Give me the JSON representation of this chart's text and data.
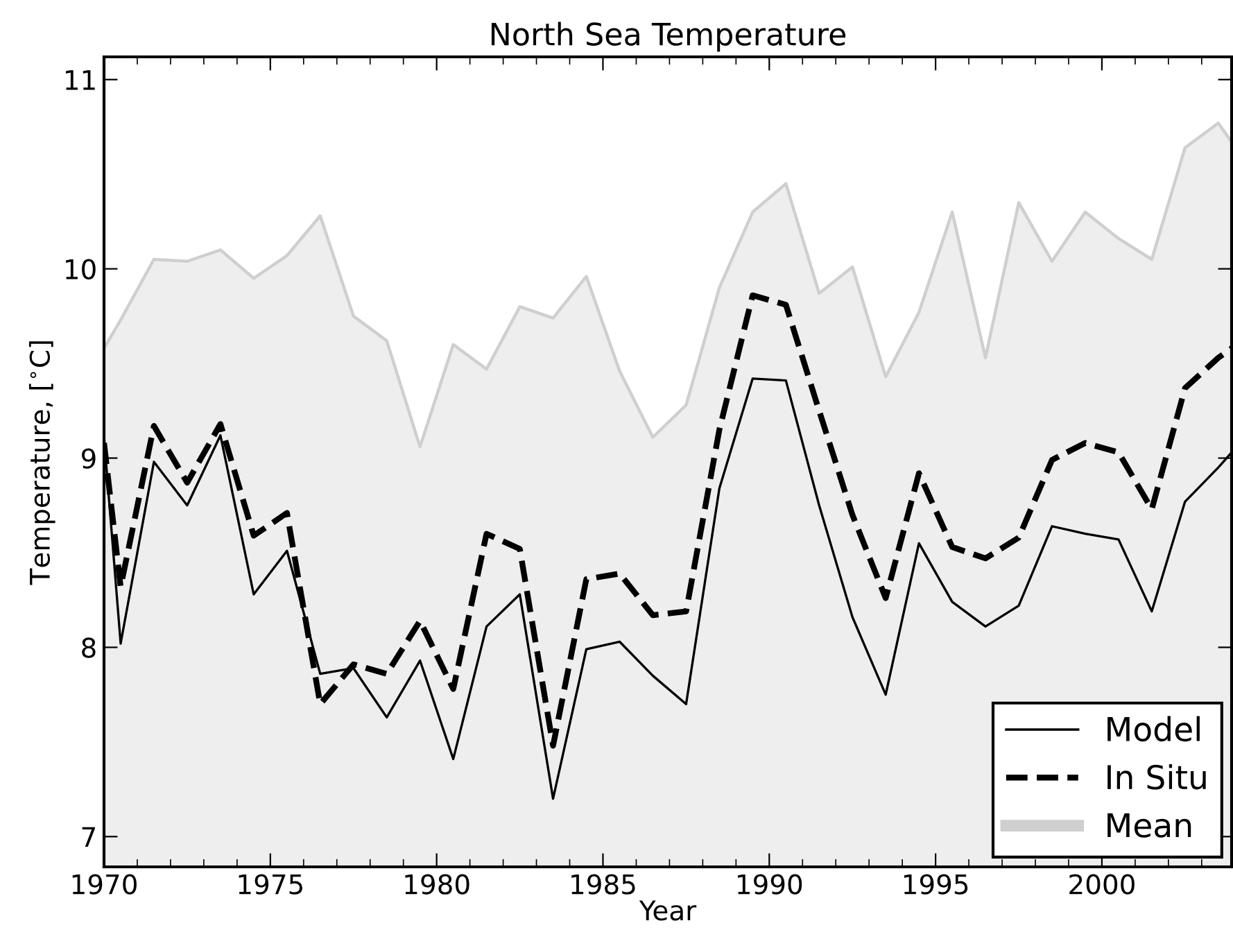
{
  "chart_data": {
    "type": "line",
    "title": "North Sea Temperature",
    "xlabel": "Year",
    "ylabel": "Temperature, [$^{∘}$C]",
    "xlim": [
      1970,
      2003.9
    ],
    "xticks": [
      1970,
      1975,
      1980,
      1985,
      1990,
      1995,
      2000
    ],
    "ylim": [
      6.84,
      11.12
    ],
    "yticks": [
      7,
      8,
      9,
      10,
      11
    ],
    "grid": false,
    "legend": "bottom right",
    "x": [
      1970,
      1970.5,
      1971.5,
      1972.5,
      1973.5,
      1974.5,
      1975.5,
      1976.5,
      1977.5,
      1978.5,
      1979.5,
      1980.5,
      1981.5,
      1982.5,
      1983.5,
      1984.5,
      1985.5,
      1986.5,
      1987.5,
      1988.5,
      1989.5,
      1990.5,
      1991.5,
      1992.5,
      1993.5,
      1994.5,
      1995.5,
      1996.5,
      1997.5,
      1998.5,
      1999.5,
      2000.5,
      2001.5,
      2002.5,
      2003.5,
      2003.9
    ],
    "series": [
      {
        "name": "Model",
        "color": "#000000",
        "line_style": "solid",
        "values": [
          9.11,
          8.02,
          8.98,
          8.75,
          9.12,
          8.28,
          8.51,
          7.86,
          7.89,
          7.63,
          7.93,
          7.41,
          8.11,
          8.28,
          7.2,
          7.99,
          8.03,
          7.85,
          7.7,
          8.84,
          9.42,
          9.41,
          8.75,
          8.16,
          7.75,
          8.55,
          8.24,
          8.11,
          8.22,
          8.64,
          8.6,
          8.57,
          8.19,
          8.77,
          8.95,
          9.03
        ]
      },
      {
        "name": "In Situ",
        "color": "#000000",
        "line_style": "dashed",
        "values": [
          9.08,
          8.32,
          9.17,
          8.87,
          9.18,
          8.59,
          8.71,
          7.7,
          7.91,
          7.86,
          8.14,
          7.78,
          8.6,
          8.52,
          7.48,
          8.36,
          8.39,
          8.17,
          8.19,
          9.15,
          9.86,
          9.81,
          9.25,
          8.7,
          8.26,
          8.92,
          8.53,
          8.47,
          8.58,
          8.99,
          9.08,
          9.03,
          8.73,
          9.37,
          9.53,
          9.58
        ]
      },
      {
        "name": "Mean",
        "type": "area",
        "color": "#cfcfcf",
        "values": [
          9.58,
          9.73,
          10.05,
          10.04,
          10.1,
          9.95,
          10.07,
          10.28,
          9.75,
          9.62,
          9.06,
          9.6,
          9.47,
          9.8,
          9.74,
          9.96,
          9.46,
          9.11,
          9.28,
          9.9,
          10.3,
          10.45,
          9.87,
          10.01,
          9.43,
          9.77,
          10.3,
          9.53,
          10.35,
          10.04,
          10.3,
          10.16,
          10.05,
          10.64,
          10.77,
          10.67
        ]
      }
    ]
  }
}
